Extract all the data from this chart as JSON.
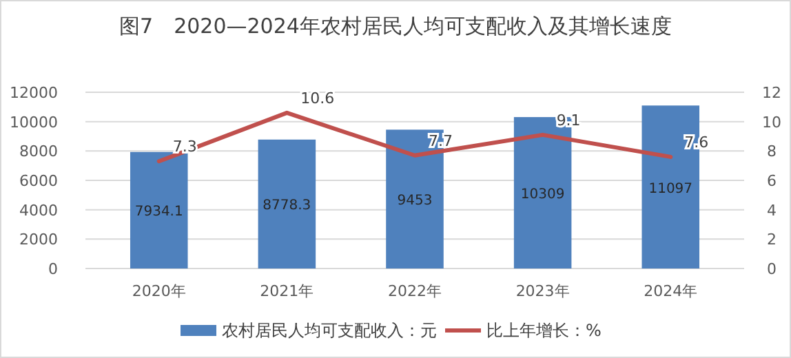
{
  "chart_data": {
    "type": "bar",
    "title": "图7　2020—2024年农村居民人均可支配收入及其增长速度",
    "categories": [
      "2020年",
      "2021年",
      "2022年",
      "2023年",
      "2024年"
    ],
    "series": [
      {
        "name": "农村居民人均可支配收入：元",
        "color": "#4f81bd",
        "values": [
          7934.1,
          8778.3,
          9453,
          10309,
          11097
        ]
      },
      {
        "name": "比上年增长：%",
        "type": "line",
        "axis": "y2",
        "color": "#c0504d",
        "values": [
          7.3,
          10.6,
          7.7,
          9.1,
          7.6
        ]
      }
    ],
    "ylim": [
      0,
      12000
    ],
    "yticks": [
      0,
      2000,
      4000,
      6000,
      8000,
      10000,
      12000
    ],
    "y2lim": [
      0,
      12
    ],
    "y2ticks": [
      0,
      2,
      4,
      6,
      8,
      10,
      12
    ],
    "grid": "y",
    "legend": "bottom",
    "data_labels": true,
    "marker": "none"
  }
}
